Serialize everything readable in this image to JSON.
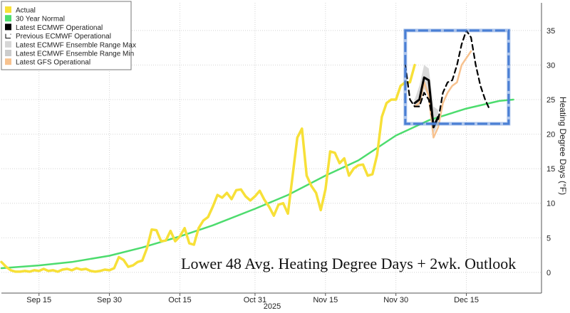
{
  "chart_data": {
    "type": "line",
    "title": "Lower 48 Avg. Heating Degree Days + 2wk. Outlook",
    "ylabel": "Heating Degree Days (°F)",
    "ylim": [
      -3,
      39
    ],
    "yticks": [
      0,
      5,
      10,
      15,
      20,
      25,
      30,
      35
    ],
    "xlim": [
      "2025-09-07",
      "2025-12-31"
    ],
    "xticks": [
      {
        "date": "2025-09-15",
        "label": "Sep 15"
      },
      {
        "date": "2025-09-30",
        "label": "Sep 30"
      },
      {
        "date": "2025-10-15",
        "label": "Oct 15"
      },
      {
        "date": "2025-10-31",
        "label": "Oct 31"
      },
      {
        "date": "2025-11-15",
        "label": "Nov 15"
      },
      {
        "date": "2025-11-30",
        "label": "Nov 30"
      },
      {
        "date": "2025-12-15",
        "label": "Dec 15"
      }
    ],
    "x_sublabel": "2025",
    "grid": true,
    "legend_position": "top-left",
    "series": [
      {
        "name": "Actual",
        "color": "#f7e038",
        "style": "solid",
        "points": [
          [
            "2025-09-07",
            1.5
          ],
          [
            "2025-09-08",
            0.8
          ],
          [
            "2025-09-09",
            0.3
          ],
          [
            "2025-09-10",
            0.1
          ],
          [
            "2025-09-11",
            0.1
          ],
          [
            "2025-09-12",
            0.2
          ],
          [
            "2025-09-13",
            0.1
          ],
          [
            "2025-09-14",
            0.3
          ],
          [
            "2025-09-15",
            0.2
          ],
          [
            "2025-09-16",
            0.5
          ],
          [
            "2025-09-17",
            0.2
          ],
          [
            "2025-09-18",
            0.3
          ],
          [
            "2025-09-19",
            0.1
          ],
          [
            "2025-09-20",
            0.4
          ],
          [
            "2025-09-21",
            0.5
          ],
          [
            "2025-09-22",
            0.3
          ],
          [
            "2025-09-23",
            0.6
          ],
          [
            "2025-09-24",
            0.4
          ],
          [
            "2025-09-25",
            0.5
          ],
          [
            "2025-09-26",
            0.2
          ],
          [
            "2025-09-27",
            0.1
          ],
          [
            "2025-09-28",
            0.2
          ],
          [
            "2025-09-29",
            0.4
          ],
          [
            "2025-09-30",
            0.3
          ],
          [
            "2025-10-01",
            0.6
          ],
          [
            "2025-10-02",
            2.2
          ],
          [
            "2025-10-03",
            1.8
          ],
          [
            "2025-10-04",
            0.8
          ],
          [
            "2025-10-05",
            1.0
          ],
          [
            "2025-10-06",
            1.5
          ],
          [
            "2025-10-07",
            1.7
          ],
          [
            "2025-10-08",
            3.5
          ],
          [
            "2025-10-09",
            6.2
          ],
          [
            "2025-10-10",
            6.1
          ],
          [
            "2025-10-11",
            4.5
          ],
          [
            "2025-10-12",
            4.6
          ],
          [
            "2025-10-13",
            6.0
          ],
          [
            "2025-10-14",
            4.5
          ],
          [
            "2025-10-15",
            5.2
          ],
          [
            "2025-10-16",
            6.4
          ],
          [
            "2025-10-17",
            4.2
          ],
          [
            "2025-10-18",
            4.0
          ],
          [
            "2025-10-19",
            6.4
          ],
          [
            "2025-10-20",
            7.5
          ],
          [
            "2025-10-21",
            8.0
          ],
          [
            "2025-10-22",
            9.5
          ],
          [
            "2025-10-23",
            11.2
          ],
          [
            "2025-10-24",
            10.8
          ],
          [
            "2025-10-25",
            11.5
          ],
          [
            "2025-10-26",
            10.6
          ],
          [
            "2025-10-27",
            11.9
          ],
          [
            "2025-10-28",
            12.0
          ],
          [
            "2025-10-29",
            11.0
          ],
          [
            "2025-10-30",
            10.4
          ],
          [
            "2025-10-31",
            11.0
          ],
          [
            "2025-11-01",
            11.8
          ],
          [
            "2025-11-02",
            10.5
          ],
          [
            "2025-11-03",
            9.5
          ],
          [
            "2025-11-04",
            8.2
          ],
          [
            "2025-11-05",
            9.8
          ],
          [
            "2025-11-06",
            10.0
          ],
          [
            "2025-11-07",
            8.5
          ],
          [
            "2025-11-08",
            14.0
          ],
          [
            "2025-11-09",
            19.5
          ],
          [
            "2025-11-10",
            20.8
          ],
          [
            "2025-11-11",
            14.0
          ],
          [
            "2025-11-12",
            12.5
          ],
          [
            "2025-11-13",
            11.5
          ],
          [
            "2025-11-14",
            9.0
          ],
          [
            "2025-11-15",
            12.0
          ],
          [
            "2025-11-16",
            17.5
          ],
          [
            "2025-11-17",
            17.3
          ],
          [
            "2025-11-18",
            15.8
          ],
          [
            "2025-11-19",
            16.5
          ],
          [
            "2025-11-20",
            14.0
          ],
          [
            "2025-11-21",
            15.0
          ],
          [
            "2025-11-22",
            15.5
          ],
          [
            "2025-11-23",
            15.6
          ],
          [
            "2025-11-24",
            14.0
          ],
          [
            "2025-11-25",
            14.2
          ],
          [
            "2025-11-26",
            17.0
          ],
          [
            "2025-11-27",
            22.5
          ],
          [
            "2025-11-28",
            24.5
          ],
          [
            "2025-11-29",
            25.0
          ],
          [
            "2025-11-30",
            25.0
          ],
          [
            "2025-12-01",
            27.0
          ],
          [
            "2025-12-02",
            27.5
          ],
          [
            "2025-12-03",
            27.5
          ],
          [
            "2025-12-04",
            30.0
          ]
        ]
      },
      {
        "name": "30 Year Normal",
        "color": "#4ddc6e",
        "style": "solid",
        "points": [
          [
            "2025-09-07",
            0.6
          ],
          [
            "2025-09-15",
            1.0
          ],
          [
            "2025-09-22",
            1.5
          ],
          [
            "2025-09-30",
            2.4
          ],
          [
            "2025-10-07",
            3.6
          ],
          [
            "2025-10-15",
            5.2
          ],
          [
            "2025-10-22",
            6.8
          ],
          [
            "2025-10-31",
            9.2
          ],
          [
            "2025-11-07",
            11.2
          ],
          [
            "2025-11-15",
            14.0
          ],
          [
            "2025-11-22",
            16.2
          ],
          [
            "2025-11-30",
            19.8
          ],
          [
            "2025-12-07",
            22.0
          ],
          [
            "2025-12-15",
            23.7
          ],
          [
            "2025-12-22",
            24.8
          ],
          [
            "2025-12-25",
            25.0
          ]
        ]
      },
      {
        "name": "Latest ECMWF Operational",
        "color": "#000000",
        "style": "solid",
        "points": [
          [
            "2025-12-04",
            24.5
          ],
          [
            "2025-12-05",
            25.0
          ],
          [
            "2025-12-06",
            28.2
          ],
          [
            "2025-12-07",
            27.8
          ],
          [
            "2025-12-08",
            21.0
          ],
          [
            "2025-12-09",
            22.5
          ]
        ]
      },
      {
        "name": "Previous ECMWF Operational",
        "color": "#000000",
        "style": "dashed",
        "points": [
          [
            "2025-12-02",
            30.0
          ],
          [
            "2025-12-03",
            25.0
          ],
          [
            "2025-12-04",
            24.0
          ],
          [
            "2025-12-05",
            24.0
          ],
          [
            "2025-12-06",
            26.0
          ],
          [
            "2025-12-07",
            25.0
          ],
          [
            "2025-12-08",
            21.5
          ],
          [
            "2025-12-09",
            22.0
          ],
          [
            "2025-12-10",
            26.0
          ],
          [
            "2025-12-11",
            27.5
          ],
          [
            "2025-12-12",
            27.8
          ],
          [
            "2025-12-13",
            30.0
          ],
          [
            "2025-12-14",
            33.0
          ],
          [
            "2025-12-15",
            35.0
          ],
          [
            "2025-12-16",
            34.0
          ],
          [
            "2025-12-17",
            30.0
          ],
          [
            "2025-12-18",
            27.0
          ],
          [
            "2025-12-19",
            25.0
          ],
          [
            "2025-12-20",
            23.5
          ]
        ]
      },
      {
        "name": "Latest ECMWF Ensemble Range Max",
        "color": "#c8c8c8",
        "style": "band",
        "points": [
          [
            "2025-12-04",
            25.0
          ],
          [
            "2025-12-05",
            27.0
          ],
          [
            "2025-12-06",
            30.0
          ],
          [
            "2025-12-07",
            29.5
          ],
          [
            "2025-12-08",
            24.0
          ],
          [
            "2025-12-09",
            23.5
          ]
        ]
      },
      {
        "name": "Latest ECMWF Ensemble Range Min",
        "color": "#d9d9d9",
        "style": "band",
        "points": [
          [
            "2025-12-04",
            24.0
          ],
          [
            "2025-12-05",
            24.0
          ],
          [
            "2025-12-06",
            26.5
          ],
          [
            "2025-12-07",
            25.5
          ],
          [
            "2025-12-08",
            20.0
          ],
          [
            "2025-12-09",
            21.5
          ]
        ]
      },
      {
        "name": "Latest GFS Operational",
        "color": "#f7c28f",
        "style": "solid",
        "points": [
          [
            "2025-12-04",
            24.0
          ],
          [
            "2025-12-05",
            24.5
          ],
          [
            "2025-12-06",
            27.5
          ],
          [
            "2025-12-07",
            25.5
          ],
          [
            "2025-12-08",
            19.5
          ],
          [
            "2025-12-09",
            21.0
          ],
          [
            "2025-12-10",
            24.5
          ],
          [
            "2025-12-11",
            26.0
          ],
          [
            "2025-12-12",
            27.0
          ],
          [
            "2025-12-13",
            27.5
          ],
          [
            "2025-12-14",
            30.0
          ],
          [
            "2025-12-15",
            31.0
          ],
          [
            "2025-12-16",
            32.0
          ]
        ]
      }
    ],
    "highlight_box": {
      "from": "2025-12-02",
      "to": "2025-12-24",
      "y_from": 21.5,
      "y_to": 35.0,
      "color": "#4a7fd4"
    }
  }
}
